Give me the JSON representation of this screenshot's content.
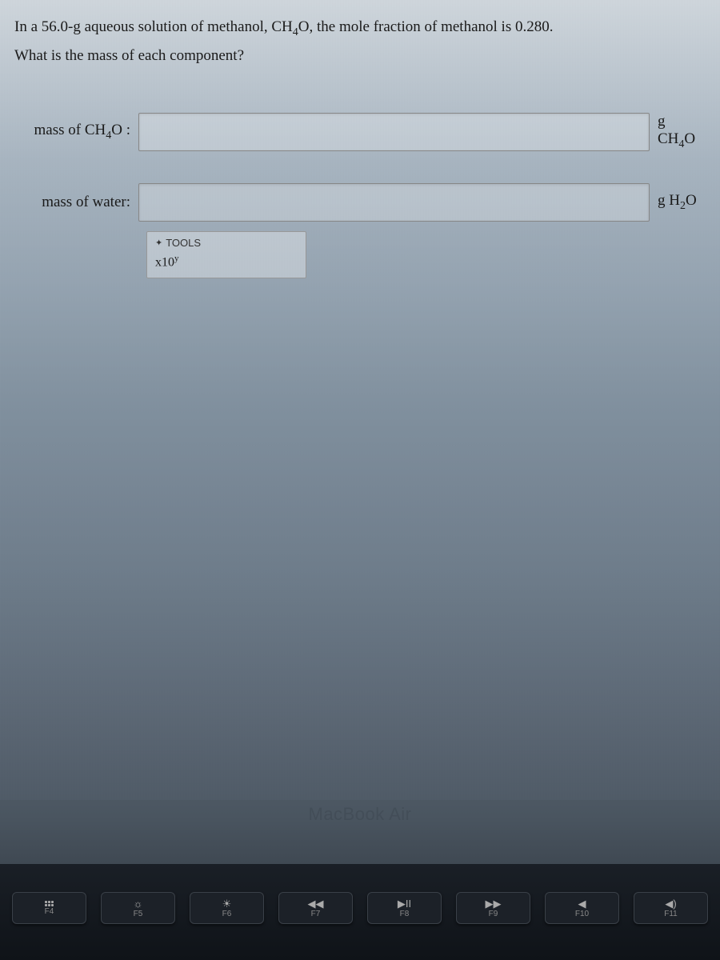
{
  "question": {
    "line1_pre": "In a 56.0-g aqueous solution of methanol, CH",
    "line1_sub": "4",
    "line1_post": "O, the mole fraction of methanol is 0.280.",
    "line2": "What is the mass of each component?"
  },
  "inputs": [
    {
      "label_pre": "mass of CH",
      "label_sub": "4",
      "label_post": "O :",
      "value": "",
      "unit_pre": "g CH",
      "unit_sub": "4",
      "unit_post": "O"
    },
    {
      "label_pre": "mass of water:",
      "label_sub": "",
      "label_post": "",
      "value": "",
      "unit_pre": "g H",
      "unit_sub": "2",
      "unit_post": "O"
    }
  ],
  "tools": {
    "header": "TOOLS",
    "button_base": "x10",
    "button_sup": "y"
  },
  "laptop": {
    "label": "MacBook Air"
  },
  "keys": [
    {
      "icon_type": "grid",
      "label": "F4"
    },
    {
      "icon": "☼",
      "label": "F5"
    },
    {
      "icon": "☀",
      "label": "F6"
    },
    {
      "icon": "◀◀",
      "label": "F7"
    },
    {
      "icon": "▶II",
      "label": "F8"
    },
    {
      "icon": "▶▶",
      "label": "F9"
    },
    {
      "icon": "◀",
      "label": "F10"
    },
    {
      "icon": "◀)",
      "label": "F11"
    }
  ],
  "colors": {
    "text": "#1a1a1a",
    "input_border": "#888888",
    "key_bg": "#1c2128",
    "key_text": "#888888"
  }
}
